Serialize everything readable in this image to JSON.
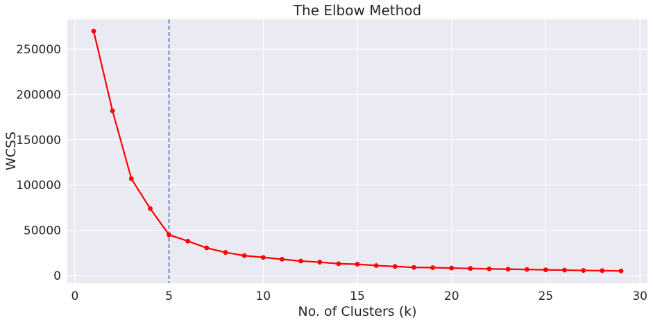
{
  "chart_data": {
    "type": "line",
    "title": "The Elbow Method",
    "xlabel": "No. of Clusters (k)",
    "ylabel": "WCSS",
    "xlim": [
      -0.4,
      30.4
    ],
    "ylim": [
      -8500,
      283000
    ],
    "xticks": [
      0,
      5,
      10,
      15,
      20,
      25,
      30
    ],
    "yticks": [
      0,
      50000,
      100000,
      150000,
      200000,
      250000
    ],
    "grid": true,
    "legend": "none",
    "x": [
      1,
      2,
      3,
      4,
      5,
      6,
      7,
      8,
      9,
      10,
      11,
      12,
      13,
      14,
      15,
      16,
      17,
      18,
      19,
      20,
      21,
      22,
      23,
      24,
      25,
      26,
      27,
      28,
      29
    ],
    "series": [
      {
        "values": [
          270000,
          182000,
          107000,
          74000,
          45000,
          38000,
          30500,
          25500,
          22000,
          20000,
          18000,
          16000,
          14800,
          13000,
          12500,
          11000,
          10000,
          9000,
          8700,
          8300,
          7800,
          7400,
          7000,
          6700,
          6300,
          6000,
          5600,
          5400,
          5100
        ],
        "color": "#ff0000"
      }
    ],
    "reference_line": {
      "axis": "x",
      "value": 5,
      "style": "dashed",
      "color": "#4c72b0"
    },
    "colors": {
      "plot_background": "#eaeaf2",
      "grid": "#ffffff",
      "text": "#262626"
    }
  }
}
